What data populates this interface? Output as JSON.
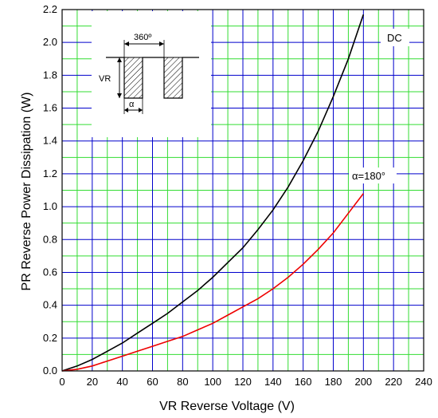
{
  "chart_data": {
    "type": "line",
    "xlabel": "VR    Reverse Voltage    (V)",
    "ylabel": "PR    Reverse  Power  Dissipation    (W)",
    "xlim": [
      0,
      240
    ],
    "ylim": [
      0,
      2.2
    ],
    "x_ticks": [
      "0",
      "20",
      "40",
      "60",
      "80",
      "100",
      "120",
      "140",
      "160",
      "180",
      "200",
      "220",
      "240"
    ],
    "y_ticks": [
      "0.0",
      "0.2",
      "0.4",
      "0.6",
      "0.8",
      "1.0",
      "1.2",
      "1.4",
      "1.6",
      "1.8",
      "2.0",
      "2.2"
    ],
    "x_minor_step": 10,
    "y_minor_step": 0.1,
    "grid": true,
    "grid_colors": {
      "major": "#0000cc",
      "minor": "#33dd33"
    },
    "series": [
      {
        "name": "DC",
        "color": "#000000",
        "x": [
          0,
          10,
          20,
          30,
          40,
          50,
          60,
          70,
          80,
          90,
          100,
          110,
          120,
          130,
          140,
          150,
          160,
          170,
          180,
          190,
          200
        ],
        "y": [
          0,
          0.03,
          0.07,
          0.12,
          0.17,
          0.23,
          0.29,
          0.35,
          0.42,
          0.49,
          0.57,
          0.66,
          0.75,
          0.86,
          0.98,
          1.12,
          1.28,
          1.46,
          1.67,
          1.9,
          2.17
        ]
      },
      {
        "name": "α=180°",
        "color": "#ee0000",
        "x": [
          0,
          10,
          20,
          30,
          40,
          50,
          60,
          70,
          80,
          90,
          100,
          110,
          120,
          130,
          140,
          150,
          160,
          170,
          180,
          190,
          200
        ],
        "y": [
          0,
          0.01,
          0.03,
          0.06,
          0.09,
          0.12,
          0.15,
          0.18,
          0.21,
          0.25,
          0.29,
          0.34,
          0.39,
          0.44,
          0.5,
          0.57,
          0.65,
          0.74,
          0.84,
          0.96,
          1.08
        ]
      }
    ],
    "inset_labels": {
      "period": "360º",
      "peak": "VR",
      "conduction": "α"
    }
  }
}
